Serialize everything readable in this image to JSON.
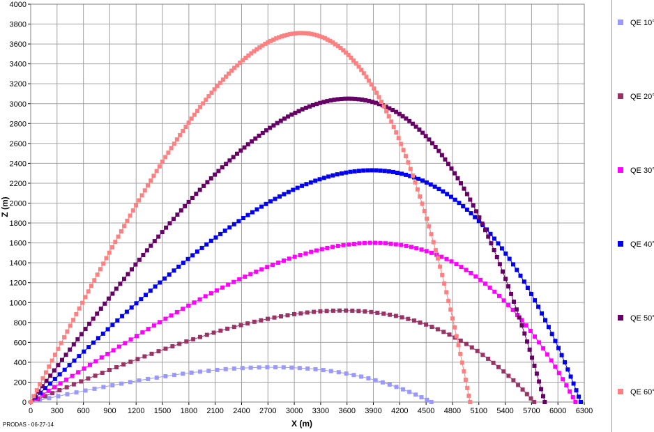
{
  "chart_data": {
    "type": "line",
    "title": "",
    "xlabel": "X (m)",
    "ylabel": "Z (m)",
    "xlim": [
      0,
      6300
    ],
    "ylim": [
      0,
      4000
    ],
    "x_ticks": [
      0,
      300,
      600,
      900,
      1200,
      1500,
      1800,
      2100,
      2400,
      2700,
      3000,
      3300,
      3600,
      3900,
      4200,
      4500,
      4800,
      5100,
      5400,
      5700,
      6000,
      6300
    ],
    "y_ticks": [
      0,
      200,
      400,
      600,
      800,
      1000,
      1200,
      1400,
      1600,
      1800,
      2000,
      2200,
      2400,
      2600,
      2800,
      3000,
      3200,
      3400,
      3600,
      3800,
      4000
    ],
    "x_tick_labels": [
      "0",
      "300",
      "600",
      "900",
      "1200",
      "1500",
      "1800",
      "2100",
      "2400",
      "2700",
      "3000",
      "3300",
      "3600",
      "3900",
      "4200",
      "4500",
      "4800",
      "5100",
      "5400",
      "5700",
      "6000",
      "6300"
    ],
    "y_tick_labels": [
      "0",
      "200",
      "400",
      "600",
      "800",
      "1000",
      "1200",
      "1400",
      "1600",
      "1800",
      "2000",
      "2200",
      "2400",
      "2600",
      "2800",
      "3000",
      "3200",
      "3400",
      "3600",
      "3800",
      "4000"
    ],
    "grid": true,
    "legend_position": "right",
    "series": [
      {
        "name": "QE 10°",
        "color": "#9999ff",
        "range": 4560,
        "apex_x": 2750,
        "apex_z": 350,
        "points": 50
      },
      {
        "name": "QE 20°",
        "color": "#993366",
        "range": 5730,
        "apex_x": 3550,
        "apex_z": 920,
        "points": 80
      },
      {
        "name": "QE 30°",
        "color": "#ff00ff",
        "range": 6200,
        "apex_x": 3900,
        "apex_z": 1600,
        "points": 105
      },
      {
        "name": "QE 40°",
        "color": "#0000ee",
        "range": 6260,
        "apex_x": 3880,
        "apex_z": 2330,
        "points": 130
      },
      {
        "name": "QE 50°",
        "color": "#660066",
        "range": 5850,
        "apex_x": 3620,
        "apex_z": 3050,
        "points": 150
      },
      {
        "name": "QE 60°",
        "color": "#ff8080",
        "range": 5000,
        "apex_x": 3080,
        "apex_z": 3710,
        "points": 165
      }
    ]
  },
  "footer_text": "PRODAS - 06-27-14"
}
